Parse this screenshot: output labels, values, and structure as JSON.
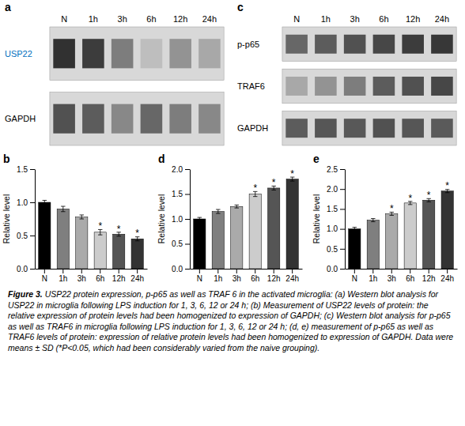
{
  "chart_data": [
    {
      "type": "heatmap",
      "title": "a",
      "categories": [
        "N",
        "1h",
        "3h",
        "6h",
        "12h",
        "24h"
      ],
      "series": [
        {
          "name": "USP22",
          "color": "#0070c0",
          "values": [
            0.95,
            0.9,
            0.6,
            0.3,
            0.5,
            0.4
          ]
        },
        {
          "name": "GAPDH",
          "color": "#000000",
          "values": [
            0.8,
            0.75,
            0.55,
            0.7,
            0.6,
            0.55
          ]
        }
      ]
    },
    {
      "type": "heatmap",
      "title": "c",
      "categories": [
        "N",
        "1h",
        "3h",
        "6h",
        "12h",
        "24h"
      ],
      "series": [
        {
          "name": "p-p65",
          "values": [
            0.7,
            0.75,
            0.8,
            0.85,
            0.9,
            0.92
          ]
        },
        {
          "name": "TRAF6",
          "values": [
            0.4,
            0.5,
            0.6,
            0.75,
            0.8,
            0.85
          ]
        },
        {
          "name": "GAPDH",
          "values": [
            0.75,
            0.78,
            0.77,
            0.8,
            0.78,
            0.76
          ]
        }
      ]
    },
    {
      "type": "bar",
      "title": "b",
      "categories": [
        "N",
        "1h",
        "3h",
        "6h",
        "12h",
        "24h"
      ],
      "values": [
        1.0,
        0.9,
        0.78,
        0.55,
        0.52,
        0.45
      ],
      "errors": [
        0.03,
        0.04,
        0.03,
        0.04,
        0.03,
        0.03
      ],
      "colors": [
        "#000000",
        "#7f7f7f",
        "#aaaaaa",
        "#cccccc",
        "#555555",
        "#333333"
      ],
      "ylabel": "Relative level",
      "ylim": [
        0.0,
        1.5
      ],
      "yticks": [
        {
          "value": 0.0,
          "label": "0.0"
        },
        0.5,
        {
          "value": 1.0,
          "label": "1.0"
        },
        1.5
      ],
      "annotations": [
        {
          "text": "*",
          "category": "6h"
        },
        {
          "text": "*",
          "category": "12h"
        },
        {
          "text": "*",
          "category": "24h"
        }
      ]
    },
    {
      "type": "bar",
      "title": "d",
      "categories": [
        "N",
        "1h",
        "3h",
        "6h",
        "12h",
        "24h"
      ],
      "values": [
        1.0,
        1.15,
        1.25,
        1.5,
        1.62,
        1.8
      ],
      "errors": [
        0.03,
        0.04,
        0.03,
        0.05,
        0.04,
        0.04
      ],
      "colors": [
        "#000000",
        "#7f7f7f",
        "#aaaaaa",
        "#cccccc",
        "#555555",
        "#333333"
      ],
      "ylabel": "Relative level",
      "ylim": [
        0.0,
        2.0
      ],
      "yticks": [
        {
          "value": 0.0,
          "label": "0.0"
        },
        0.5,
        {
          "value": 1.0,
          "label": "1.0"
        },
        1.5,
        {
          "value": 2.0,
          "label": "2.0"
        }
      ],
      "annotations": [
        {
          "text": "*",
          "category": "6h"
        },
        {
          "text": "*",
          "category": "12h"
        },
        {
          "text": "*",
          "category": "24h"
        }
      ]
    },
    {
      "type": "bar",
      "title": "e",
      "categories": [
        "N",
        "1h",
        "3h",
        "6h",
        "12h",
        "24h"
      ],
      "values": [
        1.0,
        1.22,
        1.38,
        1.65,
        1.72,
        1.95
      ],
      "errors": [
        0.04,
        0.04,
        0.04,
        0.04,
        0.04,
        0.04
      ],
      "colors": [
        "#000000",
        "#7f7f7f",
        "#aaaaaa",
        "#cccccc",
        "#555555",
        "#333333"
      ],
      "ylabel": "Relative level",
      "ylim": [
        0.0,
        2.5
      ],
      "yticks": [
        {
          "value": 0.0,
          "label": "0.0"
        },
        0.5,
        {
          "value": 1.0,
          "label": "1.0"
        },
        1.5,
        {
          "value": 2.0,
          "label": "2.0"
        },
        2.5
      ],
      "annotations": [
        {
          "text": "*",
          "category": "3h"
        },
        {
          "text": "*",
          "category": "6h"
        },
        {
          "text": "*",
          "category": "12h"
        },
        {
          "text": "*",
          "category": "24h"
        }
      ]
    },
    {
      "type": "text",
      "annotations": [
        "Figure 3.",
        " USP22 protein expression, p-p65 as well as TRAF 6 in the activated microglia: (a) Western blot analysis for USP22 in microglia following LPS induction for 1, 3, 6, 12 or 24 h; (b) Measurement of USP22 levels of protein: the relative expression of protein levels had been homogenized to expression of GAPDH; (c) Western blot analysis for p-p65 as well as TRAF6 in microglia following LPS induction for 1, 3, 6, 12 or 24 h; (d, e) measurement of p-p65 as well as TRAF6 levels of protein: expression of relative protein levels had been homogenized to expression of GAPDH. Data were means ± SD (*P<0.05, which had been considerably varied from the naive grouping)."
      ]
    }
  ]
}
